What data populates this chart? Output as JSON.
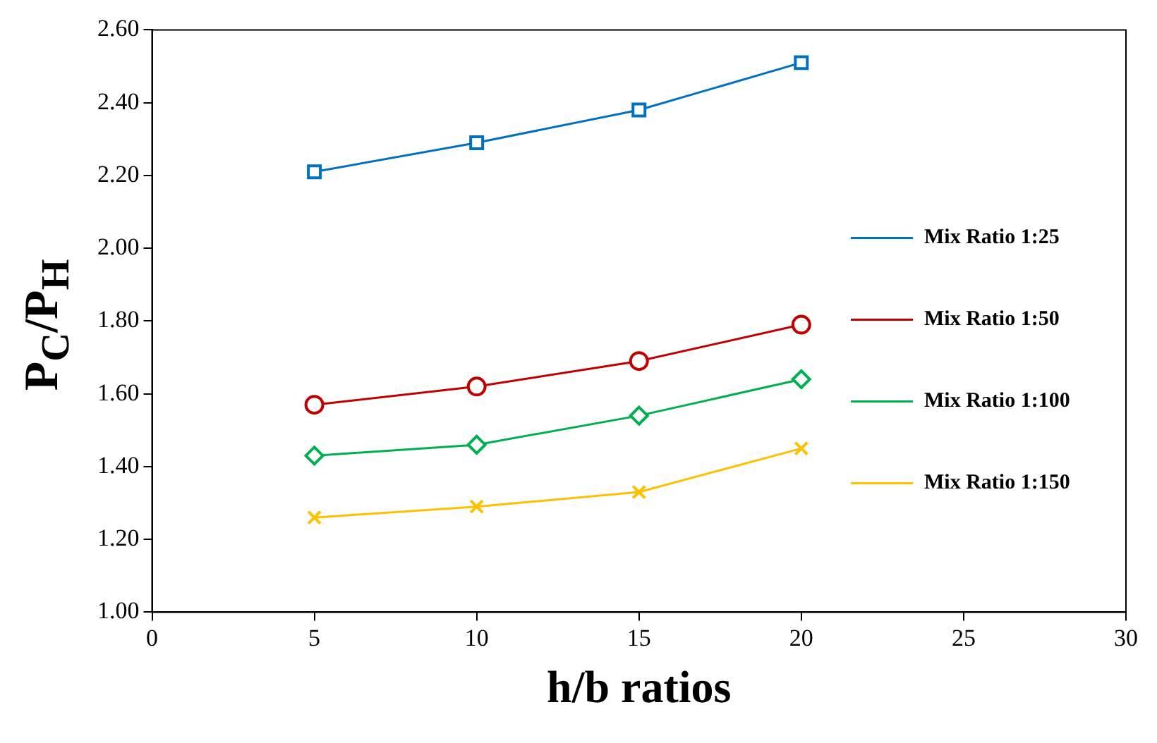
{
  "chart_data": {
    "type": "line",
    "xlabel": "h/b ratios",
    "ylabel": "P$_{C}$/P$_{H}$",
    "x": [
      5,
      10,
      15,
      20
    ],
    "xlim": [
      0,
      30
    ],
    "xticks": [
      0,
      5,
      10,
      15,
      20,
      25,
      30
    ],
    "ylim": [
      1,
      2.6
    ],
    "yticks": [
      {
        "value": 1,
        "label": "1.00"
      },
      {
        "value": 1.2,
        "label": "1.20"
      },
      {
        "value": 1.4,
        "label": "1.40"
      },
      {
        "value": 1.6,
        "label": "1.60"
      },
      {
        "value": 1.8,
        "label": "1.80"
      },
      {
        "value": 2,
        "label": "2.00"
      },
      {
        "value": 2.2,
        "label": "2.20"
      },
      {
        "value": 2.4,
        "label": "2.40"
      },
      {
        "value": 2.6,
        "label": "2.60"
      }
    ],
    "grid": false,
    "legend": "right",
    "line_style": "solid",
    "series": [
      {
        "name": "Mix Ratio 1:25",
        "color": "#0070c0",
        "marker": "square",
        "values": [
          2.21,
          2.29,
          2.38,
          2.51
        ]
      },
      {
        "name": "Mix Ratio 1:50",
        "color": "#c00000",
        "marker": "circle",
        "values": [
          1.57,
          1.62,
          1.69,
          1.79
        ]
      },
      {
        "name": "Mix Ratio 1:100",
        "color": "#00b050",
        "marker": "diamond",
        "values": [
          1.43,
          1.46,
          1.54,
          1.64
        ]
      },
      {
        "name": "Mix Ratio 1:150",
        "color": "#ffc000",
        "marker": "cross",
        "values": [
          1.26,
          1.29,
          1.33,
          1.45
        ]
      }
    ]
  }
}
